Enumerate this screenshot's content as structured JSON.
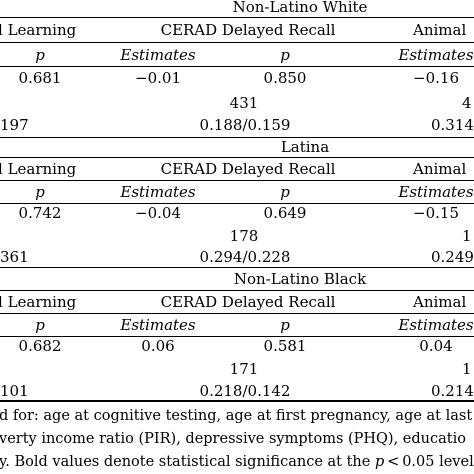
{
  "sections": [
    {
      "group": "Non-Latino White",
      "headers": {
        "col1": "l Learning",
        "col2": "CERAD Delayed Recall",
        "col3": "Animal"
      },
      "subheaders": {
        "p1": "p",
        "est2": "Estimates",
        "p2": "p",
        "est3": "Estimates"
      },
      "row1": {
        "p1": "0.681",
        "est2": "−0.01",
        "p2": "0.850",
        "est3": "−0.16"
      },
      "row2": {
        "n": "431",
        "nr": "4"
      },
      "row3": {
        "r2_left": "197",
        "r2_mid": "0.188/0.159",
        "r2_right": "0.314"
      }
    },
    {
      "group": "Latina",
      "headers": {
        "col1": "l Learning",
        "col2": "CERAD Delayed Recall",
        "col3": "Animal"
      },
      "subheaders": {
        "p1": "p",
        "est2": "Estimates",
        "p2": "p",
        "est3": "Estimates"
      },
      "row1": {
        "p1": "0.742",
        "est2": "−0.04",
        "p2": "0.649",
        "est3": "−0.15"
      },
      "row2": {
        "n": "178",
        "nr": "1"
      },
      "row3": {
        "r2_left": "361",
        "r2_mid": "0.294/0.228",
        "r2_right": "0.249"
      }
    },
    {
      "group": "Non-Latino Black",
      "headers": {
        "col1": "l Learning",
        "col2": "CERAD Delayed Recall",
        "col3": "Animal"
      },
      "subheaders": {
        "p1": "p",
        "est2": "Estimates",
        "p2": "p",
        "est3": "Estimates"
      },
      "row1": {
        "p1": "0.682",
        "est2": "0.06",
        "p2": "0.581",
        "est3": "0.04"
      },
      "row2": {
        "n": "171",
        "nr": "1"
      },
      "row3": {
        "r2_left": "101",
        "r2_mid": "0.218/0.142",
        "r2_right": "0.214"
      }
    }
  ],
  "footnote": {
    "line1": "d for: age at cognitive testing, age at first pregnancy, age at last m",
    "line2": "verty income ratio (PIR), depressive symptoms (PHQ), educatio",
    "line3_a": "y. Bold values denote statistical significance at the ",
    "line3_p": "p",
    "line3_b": " < 0.05 level."
  }
}
